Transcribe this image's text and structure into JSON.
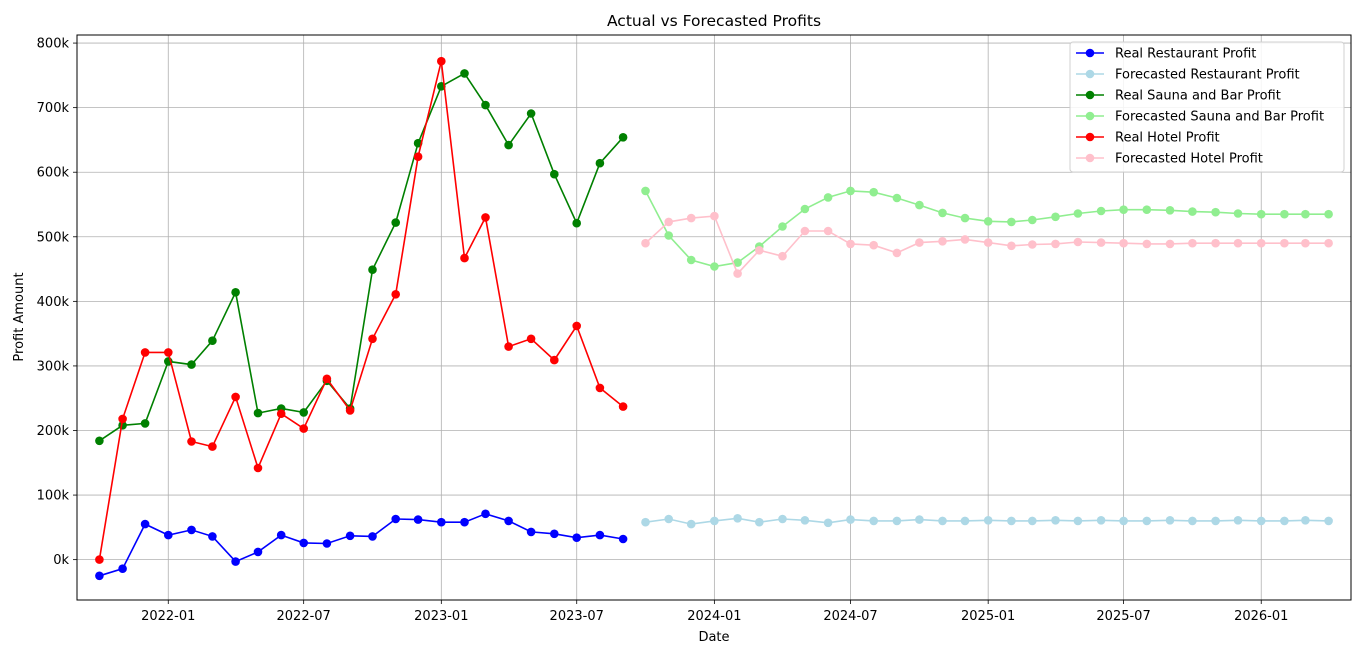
{
  "chart_data": {
    "type": "line",
    "title": "Actual vs Forecasted Profits",
    "xlabel": "Date",
    "ylabel": "Profit Amount",
    "x_range": [
      "2021-09-01",
      "2026-05-01"
    ],
    "ylim": [
      -62500,
      812500
    ],
    "grid": true,
    "legend_position": "top-right",
    "x_ticks": [
      "2022-01",
      "2022-07",
      "2023-01",
      "2023-07",
      "2024-01",
      "2024-07",
      "2025-01",
      "2025-07",
      "2026-01"
    ],
    "y_ticks": [
      {
        "value": 0,
        "label": "0k"
      },
      {
        "value": 100000,
        "label": "100k"
      },
      {
        "value": 200000,
        "label": "200k"
      },
      {
        "value": 300000,
        "label": "300k"
      },
      {
        "value": 400000,
        "label": "400k"
      },
      {
        "value": 500000,
        "label": "500k"
      },
      {
        "value": 600000,
        "label": "600k"
      },
      {
        "value": 700000,
        "label": "700k"
      },
      {
        "value": 800000,
        "label": "800k"
      }
    ],
    "series": [
      {
        "name": "Real Restaurant Profit",
        "color": "#0000ff",
        "x": [
          "2021-10-01",
          "2021-11-01",
          "2021-12-01",
          "2022-01-01",
          "2022-02-01",
          "2022-03-01",
          "2022-04-01",
          "2022-05-01",
          "2022-06-01",
          "2022-07-01",
          "2022-08-01",
          "2022-09-01",
          "2022-10-01",
          "2022-11-01",
          "2022-12-01",
          "2023-01-01",
          "2023-02-01",
          "2023-03-01",
          "2023-04-01",
          "2023-05-01",
          "2023-06-01",
          "2023-07-01",
          "2023-08-01",
          "2023-09-01"
        ],
        "y": [
          -25000,
          -14000,
          55000,
          38000,
          46000,
          36000,
          -3000,
          12000,
          38000,
          26000,
          25000,
          37000,
          36000,
          63000,
          62000,
          58000,
          58000,
          71000,
          60000,
          43000,
          40000,
          34000,
          38000,
          32000
        ]
      },
      {
        "name": "Forecasted Restaurant Profit",
        "color": "#add8e6",
        "x": [
          "2023-10-01",
          "2023-11-01",
          "2023-12-01",
          "2024-01-01",
          "2024-02-01",
          "2024-03-01",
          "2024-04-01",
          "2024-05-01",
          "2024-06-01",
          "2024-07-01",
          "2024-08-01",
          "2024-09-01",
          "2024-10-01",
          "2024-11-01",
          "2024-12-01",
          "2025-01-01",
          "2025-02-01",
          "2025-03-01",
          "2025-04-01",
          "2025-05-01",
          "2025-06-01",
          "2025-07-01",
          "2025-08-01",
          "2025-09-01",
          "2025-10-01",
          "2025-11-01",
          "2025-12-01",
          "2026-01-01",
          "2026-02-01",
          "2026-03-01",
          "2026-04-01"
        ],
        "y": [
          58000,
          63000,
          55000,
          60000,
          64000,
          58000,
          63000,
          61000,
          57000,
          62000,
          60000,
          60000,
          62000,
          60000,
          60000,
          61000,
          60000,
          60000,
          61000,
          60000,
          61000,
          60000,
          60000,
          61000,
          60000,
          60000,
          61000,
          60000,
          60000,
          61000,
          60000
        ]
      },
      {
        "name": "Real Sauna and Bar Profit",
        "color": "#008000",
        "x": [
          "2021-10-01",
          "2021-11-01",
          "2021-12-01",
          "2022-01-01",
          "2022-02-01",
          "2022-03-01",
          "2022-04-01",
          "2022-05-01",
          "2022-06-01",
          "2022-07-01",
          "2022-08-01",
          "2022-09-01",
          "2022-10-01",
          "2022-11-01",
          "2022-12-01",
          "2023-01-01",
          "2023-02-01",
          "2023-03-01",
          "2023-04-01",
          "2023-05-01",
          "2023-06-01",
          "2023-07-01",
          "2023-08-01",
          "2023-09-01"
        ],
        "y": [
          184000,
          208000,
          211000,
          307000,
          302000,
          339000,
          414000,
          227000,
          234000,
          228000,
          277000,
          234000,
          449000,
          522000,
          645000,
          733000,
          753000,
          704000,
          642000,
          691000,
          597000,
          521000,
          614000,
          654000
        ]
      },
      {
        "name": "Forecasted Sauna and Bar Profit",
        "color": "#90ee90",
        "x": [
          "2023-10-01",
          "2023-11-01",
          "2023-12-01",
          "2024-01-01",
          "2024-02-01",
          "2024-03-01",
          "2024-04-01",
          "2024-05-01",
          "2024-06-01",
          "2024-07-01",
          "2024-08-01",
          "2024-09-01",
          "2024-10-01",
          "2024-11-01",
          "2024-12-01",
          "2025-01-01",
          "2025-02-01",
          "2025-03-01",
          "2025-04-01",
          "2025-05-01",
          "2025-06-01",
          "2025-07-01",
          "2025-08-01",
          "2025-09-01",
          "2025-10-01",
          "2025-11-01",
          "2025-12-01",
          "2026-01-01",
          "2026-02-01",
          "2026-03-01",
          "2026-04-01"
        ],
        "y": [
          571000,
          502000,
          464000,
          454000,
          460000,
          485000,
          516000,
          543000,
          561000,
          571000,
          569000,
          560000,
          549000,
          537000,
          529000,
          524000,
          523000,
          526000,
          531000,
          536000,
          540000,
          542000,
          542000,
          541000,
          539000,
          538000,
          536000,
          535000,
          535000,
          535000,
          535000
        ]
      },
      {
        "name": "Real Hotel Profit",
        "color": "#ff0000",
        "x": [
          "2021-10-01",
          "2021-11-01",
          "2021-12-01",
          "2022-01-01",
          "2022-02-01",
          "2022-03-01",
          "2022-04-01",
          "2022-05-01",
          "2022-06-01",
          "2022-07-01",
          "2022-08-01",
          "2022-09-01",
          "2022-10-01",
          "2022-11-01",
          "2022-12-01",
          "2023-01-01",
          "2023-02-01",
          "2023-03-01",
          "2023-04-01",
          "2023-05-01",
          "2023-06-01",
          "2023-07-01",
          "2023-08-01",
          "2023-09-01"
        ],
        "y": [
          0,
          218000,
          321000,
          321000,
          183000,
          175000,
          252000,
          142000,
          226000,
          203000,
          280000,
          231000,
          342000,
          411000,
          624000,
          772000,
          467000,
          530000,
          330000,
          342000,
          309000,
          362000,
          266000,
          237000
        ]
      },
      {
        "name": "Forecasted Hotel Profit",
        "color": "#ffc0cb",
        "x": [
          "2023-10-01",
          "2023-11-01",
          "2023-12-01",
          "2024-01-01",
          "2024-02-01",
          "2024-03-01",
          "2024-04-01",
          "2024-05-01",
          "2024-06-01",
          "2024-07-01",
          "2024-08-01",
          "2024-09-01",
          "2024-10-01",
          "2024-11-01",
          "2024-12-01",
          "2025-01-01",
          "2025-02-01",
          "2025-03-01",
          "2025-04-01",
          "2025-05-01",
          "2025-06-01",
          "2025-07-01",
          "2025-08-01",
          "2025-09-01",
          "2025-10-01",
          "2025-11-01",
          "2025-12-01",
          "2026-01-01",
          "2026-02-01",
          "2026-03-01",
          "2026-04-01"
        ],
        "y": [
          490000,
          523000,
          529000,
          532000,
          443000,
          479000,
          470000,
          509000,
          509000,
          489000,
          487000,
          475000,
          491000,
          493000,
          496000,
          491000,
          486000,
          488000,
          489000,
          492000,
          491000,
          490000,
          489000,
          489000,
          490000,
          490000,
          490000,
          490000,
          490000,
          490000,
          490000
        ]
      }
    ]
  }
}
